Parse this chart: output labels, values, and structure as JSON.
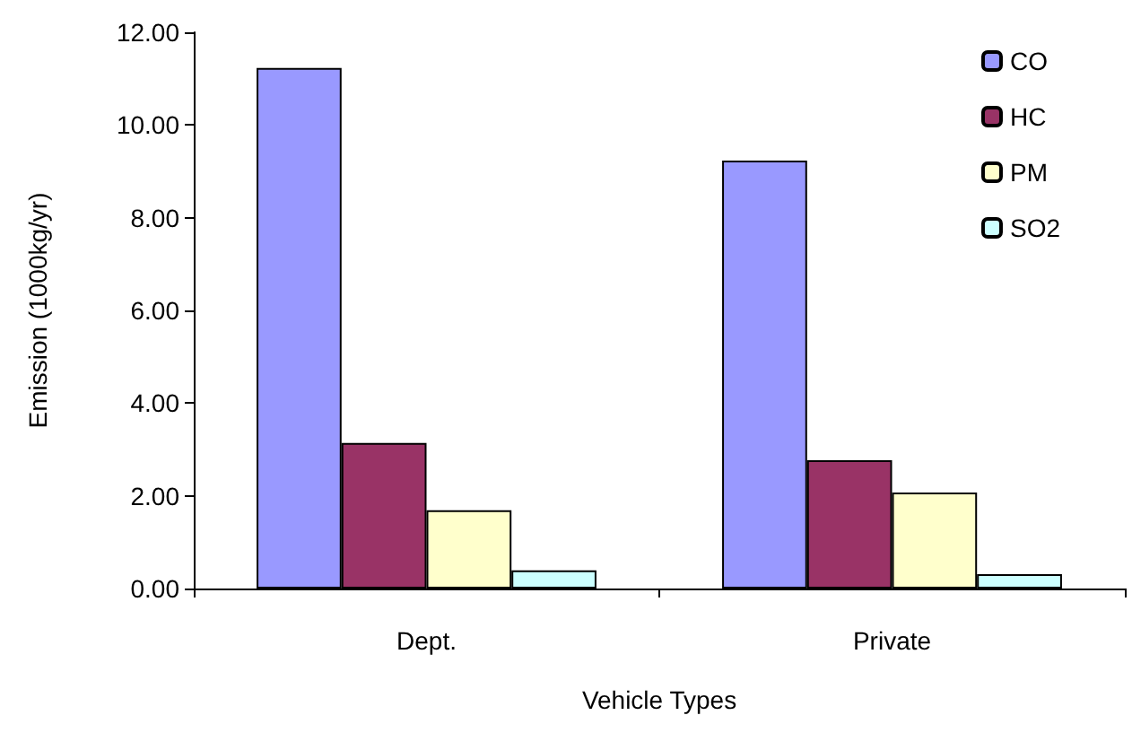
{
  "chart_data": {
    "type": "bar",
    "xlabel": "Vehicle Types",
    "ylabel": "Emission (1000kg/yr)",
    "categories": [
      "Dept.",
      "Private"
    ],
    "series": [
      {
        "name": "CO",
        "color": "#9999ff",
        "values": [
          11.23,
          9.23
        ]
      },
      {
        "name": "HC",
        "color": "#993366",
        "values": [
          3.14,
          2.77
        ]
      },
      {
        "name": "PM",
        "color": "#ffffcc",
        "values": [
          1.69,
          2.07
        ]
      },
      {
        "name": "SO2",
        "color": "#ccffff",
        "values": [
          0.39,
          0.31
        ]
      }
    ],
    "ylim": [
      0,
      12
    ],
    "yticks": [
      {
        "value": 0,
        "label": "0.00"
      },
      {
        "value": 2,
        "label": "2.00"
      },
      {
        "value": 4,
        "label": "4.00"
      },
      {
        "value": 6,
        "label": "6.00"
      },
      {
        "value": 8,
        "label": "8.00"
      },
      {
        "value": 10,
        "label": "10.00"
      },
      {
        "value": 12,
        "label": "12.00"
      }
    ],
    "grid": false,
    "legend": "top right"
  }
}
